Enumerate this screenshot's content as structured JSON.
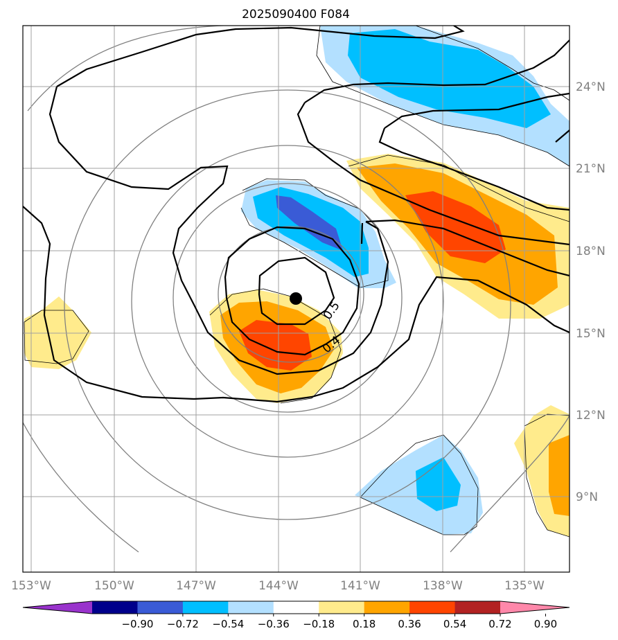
{
  "title": "2025090400 F084",
  "map": {
    "lon_range": [
      -153.3,
      -133.9
    ],
    "lat_range": [
      6.2,
      26.3
    ],
    "lon_ticks": [
      {
        "value": -153,
        "label": "153°W"
      },
      {
        "value": -150,
        "label": "150°W"
      },
      {
        "value": -147,
        "label": "147°W"
      },
      {
        "value": -144,
        "label": "144°W"
      },
      {
        "value": -141,
        "label": "141°W"
      },
      {
        "value": -138,
        "label": "138°W"
      },
      {
        "value": -135,
        "label": "135°W"
      }
    ],
    "lat_ticks": [
      {
        "value": 24,
        "label": "24°N"
      },
      {
        "value": 21,
        "label": "21°N"
      },
      {
        "value": 18,
        "label": "18°N"
      },
      {
        "value": 15,
        "label": "15°N"
      },
      {
        "value": 12,
        "label": "12°N"
      },
      {
        "value": 9,
        "label": "9°N"
      }
    ],
    "storm_center": {
      "lon": -143.3,
      "lat": 16.3
    },
    "contour_labels": [
      {
        "text": "0.5",
        "lon": -142.0,
        "lat": 15.1,
        "rotate": -55
      },
      {
        "text": "0.4",
        "lon": -142.0,
        "lat": 13.6,
        "rotate": -40
      }
    ]
  },
  "colorbar": {
    "labels": [
      "−0.90",
      "−0.72",
      "−0.54",
      "−0.36",
      "−0.18",
      "0.18",
      "0.36",
      "0.54",
      "0.72",
      "0.90"
    ],
    "colors": [
      "#9933cc",
      "#00008b",
      "#3a5bd6",
      "#00bfff",
      "#b3e0ff",
      "#ffffff",
      "#ffeb8c",
      "#ffa500",
      "#ff4500",
      "#b22222",
      "#ff88aa"
    ]
  },
  "colors": {
    "frame": "#000000",
    "grid": "#a0a0a0",
    "background_contour": "#808080",
    "main_contour": "#000000"
  }
}
